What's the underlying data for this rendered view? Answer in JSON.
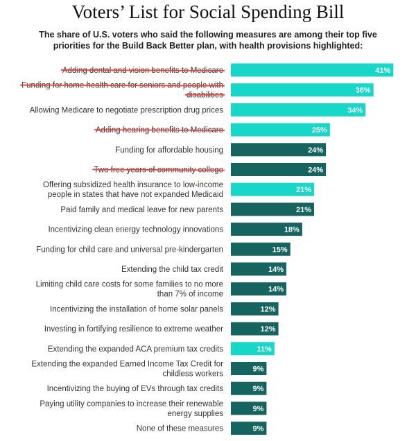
{
  "title": "Voters’ List for Social Spending Bill",
  "subtitle": "The share of U.S. voters who said the following measures are among their top five priorities for the Build Back Better plan, with health provisions highlighted:",
  "colors": {
    "health": "#17d8c8",
    "other": "#16645f",
    "strike": "#e8433d"
  },
  "chart_data": {
    "type": "bar",
    "orientation": "horizontal",
    "value_suffix": "%",
    "xlim": [
      0,
      42
    ],
    "categories": [
      "Adding dental and vision benefits to Medicare",
      "Funding for home health care for seniors and people with disabilities",
      "Allowing Medicare to negotiate prescription drug prices",
      "Adding hearing benefits to Medicare",
      "Funding for affordable housing",
      "Two free years of community college",
      "Offering subsidized health insurance to low-income people in states that have not expanded Medicaid",
      "Paid family and medical leave for new parents",
      "Incentivizing clean energy technology innovations",
      "Funding for child care and universal pre-kindergarten",
      "Extending the child tax credit",
      "Limiting child care costs for some families to no more than 7% of income",
      "Incentivizing the installation of home solar panels",
      "Investing in fortifying resilience to extreme weather",
      "Extending the expanded ACA premium tax credits",
      "Extending the expanded Earned Income Tax Credit for childless workers",
      "Incentivizing the buying of EVs through tax credits",
      "Paying utility companies to increase their renewable energy supplies",
      "None of these measures"
    ],
    "label_lines": [
      [
        "Adding dental and vision benefits to Medicare"
      ],
      [
        "Funding for home health care for seniors and people with",
        "disabilities"
      ],
      [
        "Allowing Medicare to negotiate prescription drug prices"
      ],
      [
        "Adding hearing benefits to Medicare"
      ],
      [
        "Funding for affordable housing"
      ],
      [
        "Two free years of community college"
      ],
      [
        "Offering subsidized health insurance to low-income",
        "people in states that have not expanded Medicaid"
      ],
      [
        "Paid family and medical leave for new parents"
      ],
      [
        "Incentivizing clean energy technology innovations"
      ],
      [
        "Funding for child care and universal pre-kindergarten"
      ],
      [
        "Extending the child tax credit"
      ],
      [
        "Limiting child care costs for some families to no more",
        "than 7% of income"
      ],
      [
        "Incentivizing the installation of home solar panels"
      ],
      [
        "Investing in fortifying resilience to extreme weather"
      ],
      [
        "Extending the expanded ACA premium tax credits"
      ],
      [
        "Extending the expanded Earned Income Tax Credit for",
        "childless workers"
      ],
      [
        "Incentivizing the buying of EVs through tax credits"
      ],
      [
        "Paying utility companies to increase their renewable",
        "energy supplies"
      ],
      [
        "None of these measures"
      ]
    ],
    "values": [
      41,
      36,
      34,
      25,
      24,
      24,
      21,
      21,
      18,
      15,
      14,
      14,
      12,
      12,
      11,
      9,
      9,
      9,
      9
    ],
    "health_highlighted": [
      true,
      true,
      true,
      true,
      false,
      false,
      true,
      false,
      false,
      false,
      false,
      false,
      false,
      false,
      true,
      false,
      false,
      false,
      false
    ],
    "struck_through": [
      true,
      true,
      false,
      true,
      false,
      true,
      false,
      false,
      false,
      false,
      false,
      false,
      false,
      false,
      false,
      false,
      false,
      false,
      false
    ]
  }
}
